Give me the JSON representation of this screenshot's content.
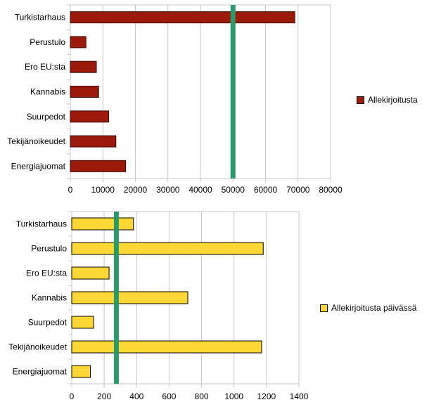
{
  "chart_data": [
    {
      "type": "bar",
      "orientation": "horizontal",
      "categories": [
        "Turkistarhaus",
        "Perustulo",
        "Ero EU:sta",
        "Kannabis",
        "Suurpedot",
        "Tekijänoikeudet",
        "Energiajuomat"
      ],
      "series": [
        {
          "name": "Allekirjoitusta",
          "values": [
            69000,
            4800,
            8000,
            8700,
            11800,
            14000,
            17000
          ],
          "color": "#9b1a0b"
        }
      ],
      "xlim": [
        0,
        80000
      ],
      "xticks": [
        "0",
        "10000",
        "20000",
        "30000",
        "40000",
        "50000",
        "60000",
        "70000",
        "80000"
      ],
      "reference_line": {
        "value": 50000,
        "color": "#2a9a6a"
      },
      "grid": true,
      "legend_position": "right"
    },
    {
      "type": "bar",
      "orientation": "horizontal",
      "categories": [
        "Turkistarhaus",
        "Perustulo",
        "Ero EU:sta",
        "Kannabis",
        "Suurpedot",
        "Tekijänoikeudet",
        "Energiajuomat"
      ],
      "series": [
        {
          "name": "Allekirjoitusta päivässä",
          "values": [
            380,
            1180,
            230,
            715,
            135,
            1170,
            115
          ],
          "color": "#fdd835"
        }
      ],
      "xlim": [
        0,
        1400
      ],
      "xticks": [
        "0",
        "200",
        "400",
        "600",
        "800",
        "1000",
        "1200",
        "1400"
      ],
      "reference_line": {
        "value": 275,
        "color": "#2a9a6a"
      },
      "grid": true,
      "legend_position": "right"
    }
  ]
}
